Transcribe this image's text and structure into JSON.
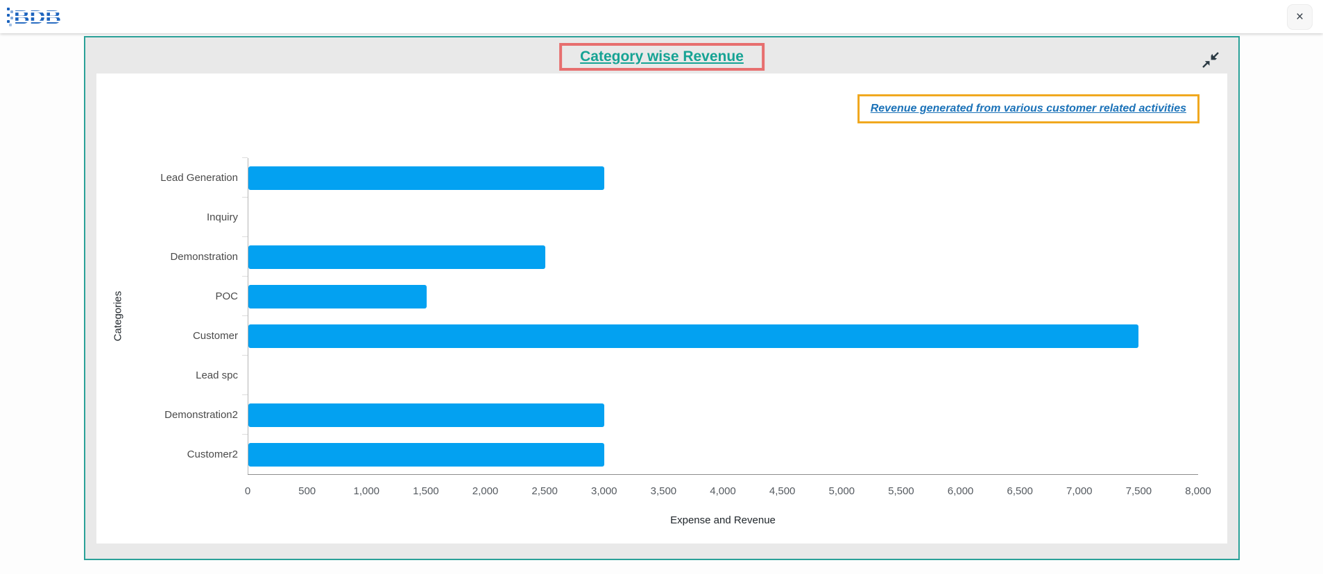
{
  "topbar": {
    "logo_text": "BDB",
    "close_label": "×"
  },
  "widget": {
    "title": "Category wise Revenue",
    "subtitle": "Revenue generated from various customer related activities",
    "collapse_icon": "collapse-arrows-icon"
  },
  "chart_data": {
    "type": "bar",
    "orientation": "horizontal",
    "title": "Category wise Revenue",
    "subtitle": "Revenue generated from various customer related activities",
    "categories": [
      "Lead Generation",
      "Inquiry",
      "Demonstration",
      "POC",
      "Customer",
      "Lead spc",
      "Demonstration2",
      "Customer2"
    ],
    "values": [
      3000,
      0,
      2500,
      1500,
      7500,
      0,
      3000,
      3000
    ],
    "xlabel": "Expense and Revenue",
    "ylabel": "Categories",
    "xlim": [
      0,
      8000
    ],
    "xtick_labels": [
      "0",
      "500",
      "1,000",
      "1,500",
      "2,000",
      "2,500",
      "3,000",
      "3,500",
      "4,000",
      "4,500",
      "5,000",
      "5,500",
      "6,000",
      "6,500",
      "7,000",
      "7,500",
      "8,000"
    ],
    "grid": false,
    "legend": false,
    "bar_color": "#03a1f1"
  },
  "colors": {
    "panel_border": "#2aa198",
    "title_text": "#16a394",
    "title_box_border": "#e76f6f",
    "subtitle_text": "#1b72b8",
    "subtitle_box_border": "#f0a81f",
    "bar_blue": "#03a1f1"
  }
}
